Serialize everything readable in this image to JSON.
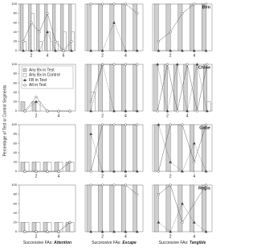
{
  "y_label": "Percentage of Test or Control Segments",
  "legend": [
    {
      "name": "Any Bx in Test",
      "color": "#cfcfcf",
      "marker": "bar"
    },
    {
      "name": "Any Bx in Control",
      "color": "#ffffff",
      "marker": "bar"
    },
    {
      "name": "FB in Test",
      "color": "#444444",
      "marker": "triangle"
    },
    {
      "name": "Alt in Test",
      "color": "#ffffff",
      "marker": "circle"
    }
  ],
  "chart_data": [
    {
      "type": "bar",
      "x": [
        1,
        2,
        3,
        4,
        5,
        6,
        7
      ],
      "xlim": [
        0.5,
        7.5
      ],
      "xticks": [
        2,
        4,
        6
      ],
      "ylim": [
        0,
        100
      ],
      "yticks": [
        0,
        20,
        40,
        60,
        80,
        100
      ],
      "series": [
        {
          "values": [
            100,
            100,
            100,
            100,
            100,
            100,
            100
          ]
        },
        {
          "values": [
            20,
            80,
            20,
            40,
            20,
            40,
            40
          ]
        },
        {
          "values": [
            0,
            0,
            0,
            40,
            0,
            0,
            0
          ]
        },
        {
          "values": [
            20,
            60,
            40,
            80,
            20,
            0,
            20
          ]
        }
      ]
    },
    {
      "type": "bar",
      "x": [
        1,
        2,
        3,
        4,
        5
      ],
      "xlim": [
        0.5,
        5.5
      ],
      "xticks": [
        2,
        4
      ],
      "ylim": [
        0,
        100
      ],
      "series": [
        {
          "values": [
            100,
            100,
            100,
            100,
            100
          ]
        },
        {
          "values": [
            0,
            0,
            0,
            0,
            0
          ]
        },
        {
          "values": [
            0,
            0,
            60,
            0,
            0
          ]
        },
        {
          "values": [
            100,
            100,
            100,
            100,
            80
          ]
        }
      ]
    },
    {
      "type": "bar",
      "title": "Ben",
      "x": [
        1,
        2,
        3,
        4,
        5
      ],
      "xlim": [
        0.5,
        5.5
      ],
      "xticks": [
        2,
        4
      ],
      "ylim": [
        0,
        100
      ],
      "series": [
        {
          "values": [
            100,
            100,
            100,
            100,
            100
          ]
        },
        {
          "values": [
            0,
            0,
            0,
            0,
            0
          ]
        },
        {
          "values": [
            0,
            0,
            0,
            0,
            0
          ]
        },
        {
          "values": [
            20,
            40,
            80,
            100,
            100
          ]
        }
      ]
    },
    {
      "type": "bar",
      "x": [
        1,
        2,
        3,
        4,
        5
      ],
      "xlim": [
        0.5,
        5.5
      ],
      "xticks": [
        2,
        4
      ],
      "ylim": [
        0,
        100
      ],
      "yticks": [
        0,
        20,
        40,
        60,
        80,
        100
      ],
      "series": [
        {
          "values": [
            20,
            20,
            0,
            0,
            0
          ]
        },
        {
          "values": [
            0,
            20,
            0,
            0,
            0
          ]
        },
        {
          "values": [
            0,
            20,
            0,
            0,
            0
          ]
        },
        {
          "values": [
            0,
            30,
            0,
            0,
            0
          ]
        }
      ]
    },
    {
      "type": "bar",
      "x": [
        1,
        2,
        3,
        4,
        5
      ],
      "xlim": [
        0.5,
        5.5
      ],
      "xticks": [
        2,
        4
      ],
      "ylim": [
        0,
        100
      ],
      "series": [
        {
          "values": [
            100,
            100,
            100,
            100,
            100
          ]
        },
        {
          "values": [
            40,
            0,
            0,
            0,
            0
          ]
        },
        {
          "values": [
            0,
            100,
            0,
            0,
            0
          ]
        },
        {
          "values": [
            20,
            100,
            100,
            100,
            100
          ]
        }
      ]
    },
    {
      "type": "bar",
      "title": "Chloe",
      "x": [
        1,
        2,
        3,
        4,
        5,
        6
      ],
      "xlim": [
        0.5,
        6.5
      ],
      "xticks": [
        2,
        4
      ],
      "ylim": [
        0,
        100
      ],
      "series": [
        {
          "values": [
            100,
            100,
            100,
            100,
            100,
            100
          ]
        },
        {
          "values": [
            0,
            0,
            0,
            0,
            0,
            20
          ]
        },
        {
          "values": [
            100,
            0,
            100,
            0,
            100,
            0
          ]
        },
        {
          "values": [
            0,
            100,
            0,
            100,
            0,
            100
          ]
        }
      ]
    },
    {
      "type": "bar",
      "x": [
        1,
        2,
        3,
        4,
        5
      ],
      "xlim": [
        0.5,
        5.5
      ],
      "xticks": [
        2,
        4
      ],
      "ylim": [
        0,
        100
      ],
      "yticks": [
        0,
        20,
        40,
        60,
        80,
        100
      ],
      "series": [
        {
          "values": [
            20,
            20,
            20,
            20,
            20
          ]
        },
        {
          "values": [
            20,
            20,
            20,
            20,
            20
          ]
        },
        {
          "values": [
            0,
            0,
            0,
            0,
            20
          ]
        },
        {
          "values": [
            0,
            0,
            0,
            0,
            20
          ]
        }
      ]
    },
    {
      "type": "bar",
      "x": [
        1,
        2,
        3,
        4,
        5
      ],
      "xlim": [
        0.5,
        5.5
      ],
      "xticks": [
        2,
        4
      ],
      "ylim": [
        0,
        100
      ],
      "series": [
        {
          "values": [
            100,
            100,
            100,
            100,
            100
          ]
        },
        {
          "values": [
            0,
            0,
            0,
            0,
            0
          ]
        },
        {
          "values": [
            80,
            0,
            0,
            0,
            0
          ]
        },
        {
          "values": [
            0,
            100,
            100,
            100,
            100
          ]
        }
      ]
    },
    {
      "type": "bar",
      "title": "Gabe",
      "x": [
        1,
        2,
        3,
        4,
        5
      ],
      "xlim": [
        0.5,
        5.5
      ],
      "xticks": [
        2,
        4
      ],
      "ylim": [
        0,
        100
      ],
      "series": [
        {
          "values": [
            100,
            100,
            100,
            100,
            100
          ]
        },
        {
          "values": [
            0,
            0,
            0,
            0,
            0
          ]
        },
        {
          "values": [
            100,
            20,
            0,
            60,
            0
          ]
        },
        {
          "values": [
            0,
            100,
            100,
            20,
            100
          ]
        }
      ]
    },
    {
      "type": "bar",
      "x": [
        1,
        2,
        3,
        4,
        5
      ],
      "xlim": [
        0.5,
        5.5
      ],
      "xticks": [
        2,
        4
      ],
      "ylim": [
        0,
        100
      ],
      "yticks": [
        0,
        20,
        40,
        60,
        80,
        100
      ],
      "xlabel": "Successive FAs:",
      "xlabel_emphasis": "Attention",
      "series": [
        {
          "values": [
            20,
            20,
            20,
            20,
            20
          ]
        },
        {
          "values": [
            20,
            20,
            20,
            20,
            20
          ]
        },
        {
          "values": [
            0,
            0,
            0,
            0,
            20
          ]
        },
        {
          "values": [
            0,
            0,
            0,
            0,
            20
          ]
        }
      ]
    },
    {
      "type": "bar",
      "x": [
        1,
        2,
        3,
        4,
        5
      ],
      "xlim": [
        0.5,
        5.5
      ],
      "xticks": [
        2,
        4
      ],
      "ylim": [
        0,
        100
      ],
      "xlabel": "Successive FAs:",
      "xlabel_emphasis": "Escape",
      "series": [
        {
          "values": [
            100,
            100,
            100,
            100,
            100
          ]
        },
        {
          "values": [
            0,
            0,
            0,
            0,
            0
          ]
        },
        {
          "values": [
            0,
            0,
            0,
            0,
            0
          ]
        },
        {
          "values": [
            100,
            100,
            100,
            100,
            80
          ]
        }
      ]
    },
    {
      "type": "bar",
      "title": "Regis",
      "x": [
        1,
        2,
        3,
        4,
        5
      ],
      "xlim": [
        0.5,
        5.5
      ],
      "xticks": [
        2,
        4
      ],
      "ylim": [
        0,
        100
      ],
      "xlabel": "Successive FAs:",
      "xlabel_emphasis": "Tangible",
      "series": [
        {
          "values": [
            100,
            100,
            100,
            100,
            100
          ]
        },
        {
          "values": [
            0,
            0,
            0,
            0,
            0
          ]
        },
        {
          "values": [
            20,
            0,
            60,
            20,
            0
          ]
        },
        {
          "values": [
            80,
            100,
            20,
            60,
            100
          ]
        }
      ]
    }
  ]
}
